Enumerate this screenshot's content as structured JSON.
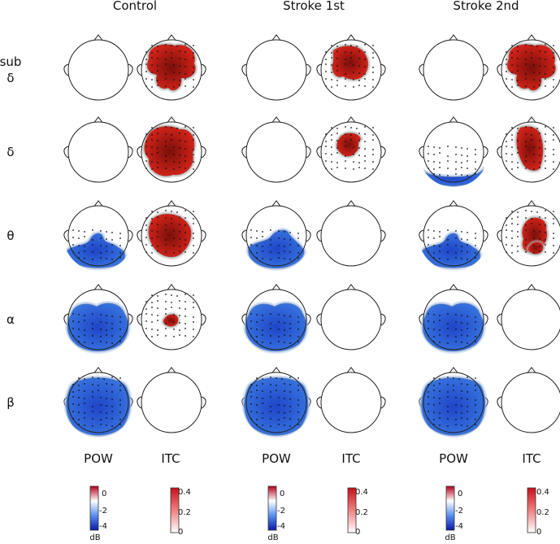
{
  "groups": [
    "Control",
    "Stroke 1st",
    "Stroke 2nd"
  ],
  "bands": [
    {
      "line1": "sub",
      "line2": "δ"
    },
    {
      "line1": "",
      "line2": "δ"
    },
    {
      "line1": "",
      "line2": "θ"
    },
    {
      "line1": "",
      "line2": "α"
    },
    {
      "line1": "",
      "line2": "β"
    }
  ],
  "measures": [
    "POW",
    "ITC"
  ],
  "colorbars": {
    "pow": {
      "ticks": [
        "0",
        "-2",
        "-4"
      ],
      "unit": "dB",
      "colors": [
        "#b3001b",
        "#ffffff",
        "#0a1aa8"
      ]
    },
    "itc": {
      "ticks": [
        "0.4",
        "0.2",
        "0"
      ],
      "colors": [
        "#c8101a",
        "#ffffff"
      ]
    }
  },
  "colors": {
    "pow_neg": "#3a78e0",
    "pow_neg_deep": "#1f45c8",
    "itc_pos": "#e0261c",
    "itc_deep": "#7a0f0a"
  }
}
